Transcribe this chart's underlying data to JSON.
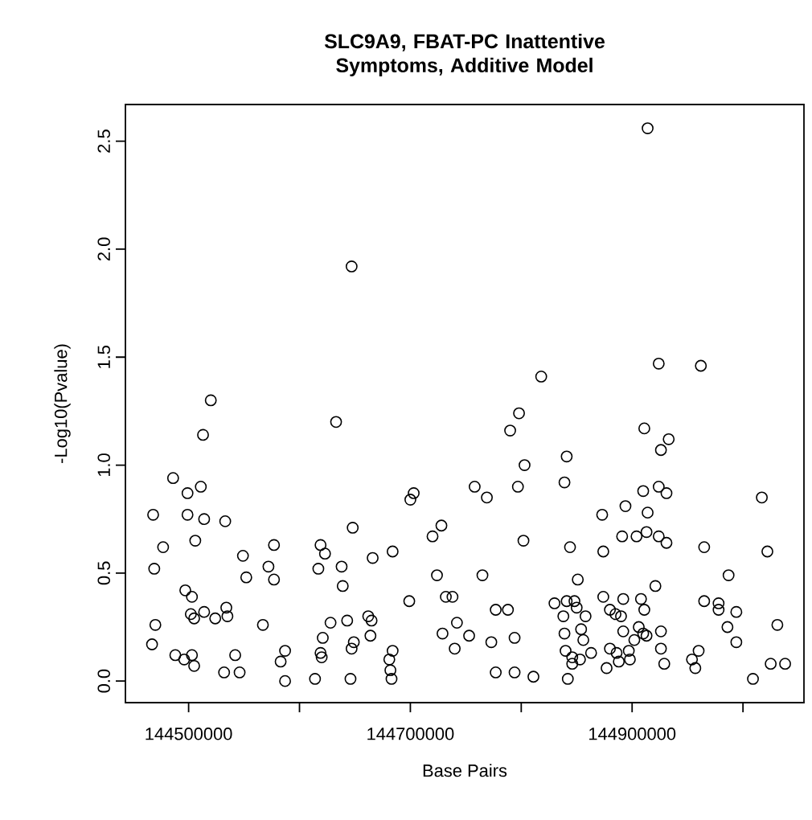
{
  "chart_data": {
    "type": "scatter",
    "title": "SLC9A9, FBAT-PC Inattentive Symptoms, Additive Model",
    "xlabel": "Base Pairs",
    "ylabel": "-Log10(Pvalue)",
    "xlim": [
      144443000,
      145055000
    ],
    "ylim": [
      -0.1,
      2.67
    ],
    "xticks": [
      144500000,
      {
        "value": 144600000,
        "label": null
      },
      144700000,
      {
        "value": 144800000,
        "label": null
      },
      144900000,
      {
        "value": 145000000,
        "label": null
      }
    ],
    "yticks": [
      {
        "value": 0,
        "label": "0.0"
      },
      0.5,
      {
        "value": 1,
        "label": "1.0"
      },
      1.5,
      {
        "value": 2,
        "label": "2.0"
      },
      2.5
    ],
    "marker": "circle",
    "series": [
      {
        "color": "#000000",
        "x": [
          144520000,
          144513000,
          144633000,
          144486000,
          144499000,
          144511000,
          144468000,
          144499000,
          144514000,
          144533000,
          144506000,
          144477000,
          144469000,
          144549000,
          144552000,
          144577000,
          144572000,
          144577000,
          144619000,
          144623000,
          144617000,
          144638000,
          144639000,
          144648000,
          144666000,
          144684000,
          144700000,
          144703000,
          144699000,
          144497000,
          144503000,
          144502000,
          144505000,
          144514000,
          144524000,
          144534000,
          144535000,
          144470000,
          144467000,
          144488000,
          144496000,
          144503000,
          144505000,
          144532000,
          144546000,
          144542000,
          144567000,
          144583000,
          144587000,
          144587000,
          144614000,
          144628000,
          144621000,
          144619000,
          144620000,
          144643000,
          144649000,
          144647000,
          144646000,
          144662000,
          144665000,
          144664000,
          144684000,
          144681000,
          144682000,
          144683000,
          144647000,
          144914000,
          144818000,
          144924000,
          144962000,
          144798000,
          144790000,
          144803000,
          144797000,
          144841000,
          144839000,
          144758000,
          144769000,
          144728000,
          144720000,
          144802000,
          144844000,
          144724000,
          144765000,
          144732000,
          144738000,
          144777000,
          144788000,
          144742000,
          144729000,
          144740000,
          144753000,
          144773000,
          144794000,
          144777000,
          144794000,
          144811000,
          144911000,
          144933000,
          144926000,
          144910000,
          144924000,
          144931000,
          144873000,
          144894000,
          144914000,
          144891000,
          144904000,
          144913000,
          144924000,
          144931000,
          144874000,
          144851000,
          144921000,
          145017000,
          145022000,
          144965000,
          144987000,
          144965000,
          144978000,
          144978000,
          144994000,
          144986000,
          144994000,
          145031000,
          144960000,
          144954000,
          144957000,
          145009000,
          145025000,
          145038000,
          144830000,
          144841000,
          144848000,
          144838000,
          144850000,
          144858000,
          144839000,
          144854000,
          144856000,
          144840000,
          144846000,
          144853000,
          144863000,
          144846000,
          144842000,
          144874000,
          144880000,
          144885000,
          144890000,
          144892000,
          144908000,
          144911000,
          144892000,
          144906000,
          144910000,
          144913000,
          144926000,
          144902000,
          144880000,
          144886000,
          144888000,
          144877000,
          144897000,
          144898000,
          144926000,
          144929000
        ],
        "values": [
          1.3,
          1.14,
          1.2,
          0.94,
          0.87,
          0.9,
          0.77,
          0.77,
          0.75,
          0.74,
          0.65,
          0.62,
          0.52,
          0.58,
          0.48,
          0.63,
          0.53,
          0.47,
          0.63,
          0.59,
          0.52,
          0.53,
          0.44,
          0.71,
          0.57,
          0.6,
          0.84,
          0.87,
          0.37,
          0.42,
          0.39,
          0.31,
          0.29,
          0.32,
          0.29,
          0.34,
          0.3,
          0.26,
          0.17,
          0.12,
          0.1,
          0.12,
          0.07,
          0.04,
          0.04,
          0.12,
          0.26,
          0.09,
          0.14,
          0.0,
          0.01,
          0.27,
          0.2,
          0.13,
          0.11,
          0.28,
          0.18,
          0.15,
          0.01,
          0.3,
          0.28,
          0.21,
          0.14,
          0.1,
          0.05,
          0.01,
          1.92,
          2.56,
          1.41,
          1.47,
          1.46,
          1.24,
          1.16,
          1.0,
          0.9,
          1.04,
          0.92,
          0.9,
          0.85,
          0.72,
          0.67,
          0.65,
          0.62,
          0.49,
          0.49,
          0.39,
          0.39,
          0.33,
          0.33,
          0.27,
          0.22,
          0.15,
          0.21,
          0.18,
          0.2,
          0.04,
          0.04,
          0.02,
          1.17,
          1.12,
          1.07,
          0.88,
          0.9,
          0.87,
          0.77,
          0.81,
          0.78,
          0.67,
          0.67,
          0.69,
          0.67,
          0.64,
          0.6,
          0.47,
          0.44,
          0.85,
          0.6,
          0.62,
          0.49,
          0.37,
          0.36,
          0.33,
          0.32,
          0.25,
          0.18,
          0.26,
          0.14,
          0.1,
          0.06,
          0.01,
          0.08,
          0.08,
          0.36,
          0.37,
          0.37,
          0.3,
          0.34,
          0.3,
          0.22,
          0.24,
          0.19,
          0.14,
          0.11,
          0.1,
          0.13,
          0.08,
          0.01,
          0.39,
          0.33,
          0.31,
          0.3,
          0.38,
          0.38,
          0.33,
          0.23,
          0.25,
          0.22,
          0.21,
          0.23,
          0.19,
          0.15,
          0.13,
          0.09,
          0.06,
          0.14,
          0.1,
          0.15,
          0.08
        ]
      }
    ]
  }
}
